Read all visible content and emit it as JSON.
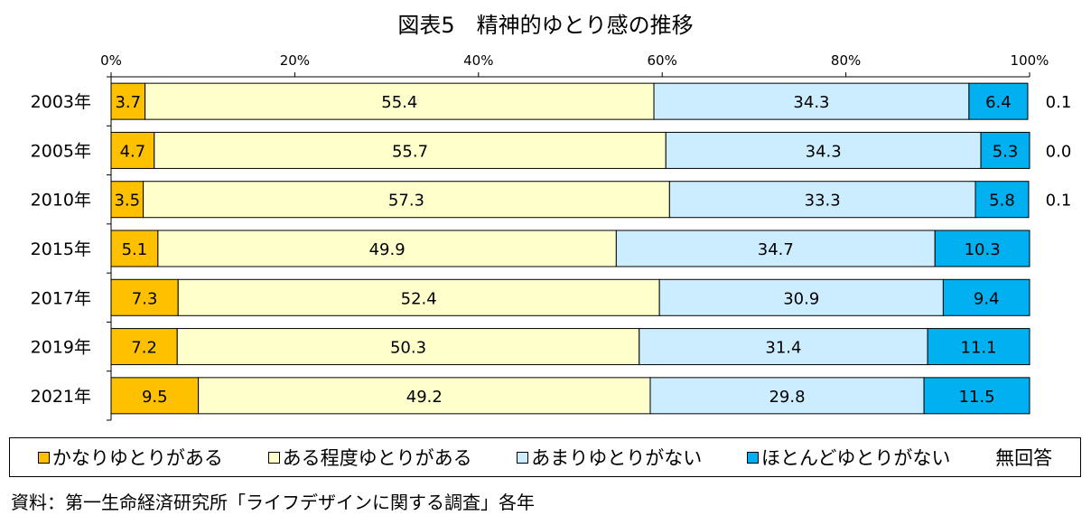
{
  "chart_data": {
    "type": "bar",
    "orientation": "horizontal",
    "stacked": true,
    "title": "図表5　精神的ゆとり感の推移",
    "xlabel": "",
    "ylabel": "",
    "xlim": [
      0,
      100
    ],
    "x_ticks": [
      "0%",
      "20%",
      "40%",
      "60%",
      "80%",
      "100%"
    ],
    "categories": [
      "2003年",
      "2005年",
      "2010年",
      "2015年",
      "2017年",
      "2019年",
      "2021年"
    ],
    "series": [
      {
        "name": "かなりゆとりがある",
        "color": "#FFC000",
        "values": [
          3.7,
          4.7,
          3.5,
          5.1,
          7.3,
          7.2,
          9.5
        ]
      },
      {
        "name": "ある程度ゆとりがある",
        "color": "#FFFFCC",
        "values": [
          55.4,
          55.7,
          57.3,
          49.9,
          52.4,
          50.3,
          49.2
        ]
      },
      {
        "name": "あまりゆとりがない",
        "color": "#CCECFF",
        "values": [
          34.3,
          34.3,
          33.3,
          34.7,
          30.9,
          31.4,
          29.8
        ]
      },
      {
        "name": "ほとんどゆとりがない",
        "color": "#00B0F0",
        "values": [
          6.4,
          5.3,
          5.8,
          10.3,
          9.4,
          11.1,
          11.5
        ]
      },
      {
        "name": "無回答",
        "color": "#FFFFFF",
        "values": [
          0.1,
          0.0,
          0.1,
          null,
          null,
          null,
          null
        ]
      }
    ],
    "value_labels": [
      [
        "3.7",
        "55.4",
        "34.3",
        "6.4",
        "0.1"
      ],
      [
        "4.7",
        "55.7",
        "34.3",
        "5.3",
        "0.0"
      ],
      [
        "3.5",
        "57.3",
        "33.3",
        "5.8",
        "0.1"
      ],
      [
        "5.1",
        "49.9",
        "34.7",
        "10.3",
        ""
      ],
      [
        "7.3",
        "52.4",
        "30.9",
        "9.4",
        ""
      ],
      [
        "7.2",
        "50.3",
        "31.4",
        "11.1",
        ""
      ],
      [
        "9.5",
        "49.2",
        "29.8",
        "11.5",
        ""
      ]
    ],
    "legend_position": "bottom"
  },
  "source": "資料：第一生命経済研究所「ライフデザインに関する調査」各年"
}
